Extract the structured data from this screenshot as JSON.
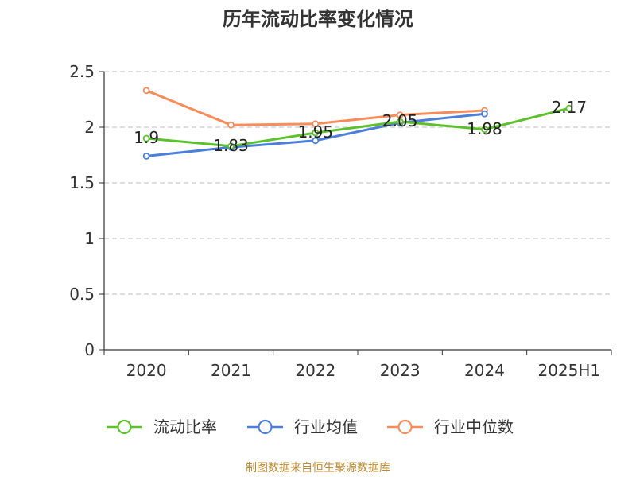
{
  "chart_data": {
    "type": "line",
    "title": "历年流动比率变化情况",
    "categories": [
      "2020",
      "2021",
      "2022",
      "2023",
      "2024",
      "2025H1"
    ],
    "ylim": [
      0,
      2.5
    ],
    "yticks": [
      "0",
      "0.5",
      "1",
      "1.5",
      "2",
      "2.5"
    ],
    "grid": true,
    "legend_position": "bottom",
    "series": [
      {
        "name": "流动比率",
        "color": "#5cc22c",
        "values": [
          1.9,
          1.83,
          1.95,
          2.05,
          1.98,
          2.17
        ],
        "labels": [
          "1.9",
          "1.83",
          "1.95",
          "2.05",
          "1.98",
          "2.17"
        ]
      },
      {
        "name": "行业均值",
        "color": "#4a7fdc",
        "values": [
          1.74,
          1.82,
          1.88,
          2.04,
          2.12,
          null
        ]
      },
      {
        "name": "行业中位数",
        "color": "#f88c5a",
        "values": [
          2.33,
          2.02,
          2.03,
          2.11,
          2.15,
          null
        ]
      }
    ],
    "source": "制图数据来自恒生聚源数据库"
  }
}
